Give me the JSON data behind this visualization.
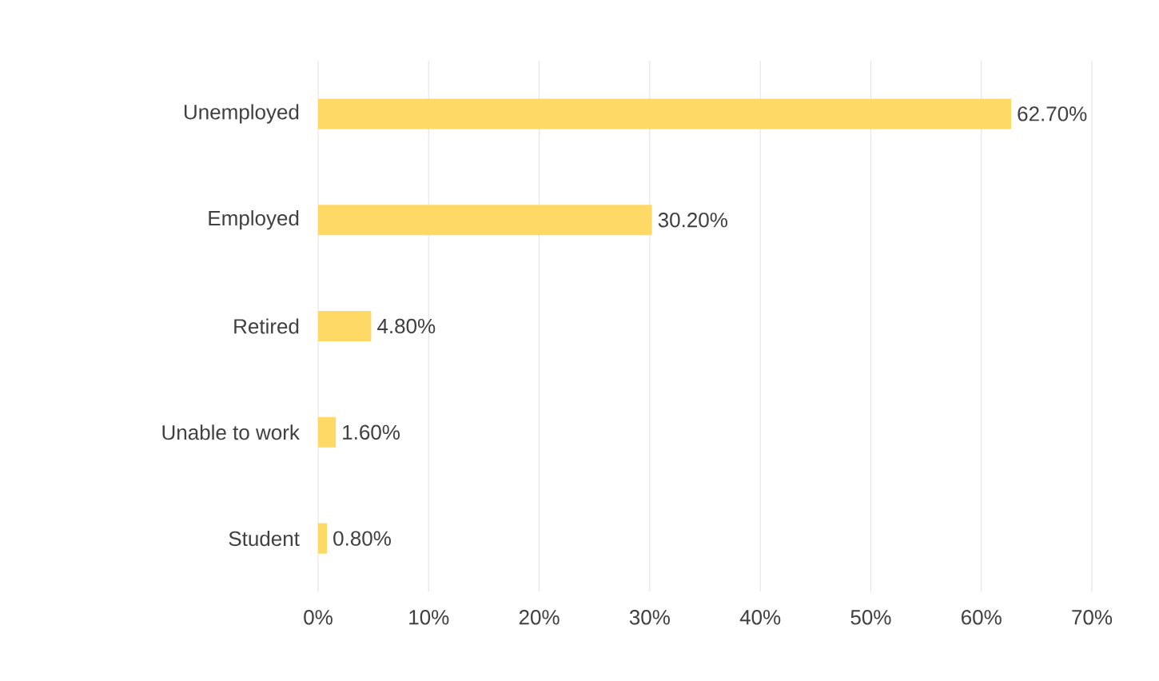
{
  "chart_data": {
    "type": "bar",
    "orientation": "horizontal",
    "categories": [
      "Unemployed",
      "Employed",
      "Retired",
      "Unable to work",
      "Student"
    ],
    "values": [
      62.7,
      30.2,
      4.8,
      1.6,
      0.8
    ],
    "value_labels": [
      "62.70%",
      "30.20%",
      "4.80%",
      "1.60%",
      "0.80%"
    ],
    "color": "#ffd966",
    "xlim": [
      0,
      70
    ],
    "xticks": [
      {
        "value": 0,
        "label": "0%"
      },
      {
        "value": 10,
        "label": "10%"
      },
      {
        "value": 20,
        "label": "20%"
      },
      {
        "value": 30,
        "label": "30%"
      },
      {
        "value": 40,
        "label": "40%"
      },
      {
        "value": 50,
        "label": "50%"
      },
      {
        "value": 60,
        "label": "60%"
      },
      {
        "value": 70,
        "label": "70%"
      }
    ],
    "grid": "x"
  }
}
